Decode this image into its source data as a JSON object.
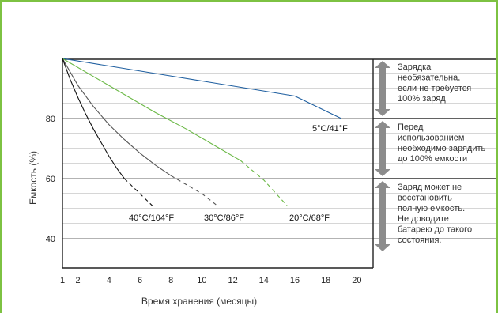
{
  "chart_data": {
    "type": "line",
    "xlabel": "Время хранения (месяцы)",
    "ylabel": "Емкость (%)",
    "xlim": [
      1,
      21
    ],
    "ylim": [
      35,
      100
    ],
    "x_ticks": [
      1,
      2,
      4,
      6,
      8,
      10,
      12,
      14,
      16,
      18,
      20
    ],
    "y_ticks": [
      40,
      60,
      80
    ],
    "grid": true,
    "series": [
      {
        "name": "5°C/41°F",
        "color": "#1f5fa0",
        "x": [
          1,
          4,
          7,
          10,
          13,
          16,
          19
        ],
        "y": [
          100,
          97.5,
          95,
          92.5,
          90,
          87.5,
          80
        ],
        "dashed_from_index": null
      },
      {
        "name": "20°C/68°F",
        "color": "#6ab845",
        "x": [
          1,
          3,
          5,
          7,
          9,
          11,
          12.5,
          14,
          15.5
        ],
        "y": [
          100,
          94,
          88,
          82,
          76.5,
          70.5,
          66,
          59.5,
          51
        ],
        "dashed_from_index": 6
      },
      {
        "name": "30°C/86°F",
        "color": "#555555",
        "x": [
          1,
          2,
          3,
          4,
          5,
          6,
          7,
          8,
          9,
          10,
          11
        ],
        "y": [
          100,
          91,
          84,
          78,
          73,
          68.5,
          64.5,
          61,
          58,
          55,
          51
        ],
        "dashed_from_index": 7
      },
      {
        "name": "40°C/104°F",
        "color": "#111111",
        "x": [
          1,
          1.5,
          2,
          2.5,
          3,
          3.5,
          4,
          4.5,
          5,
          6,
          6.8
        ],
        "y": [
          100,
          93,
          87,
          81.5,
          76.5,
          72,
          67.5,
          63.5,
          60,
          55,
          51
        ],
        "dashed_from_index": 8
      }
    ],
    "zones": [
      {
        "from": 80,
        "to": 100,
        "lines": [
          "Зарядка",
          "необязательна,",
          "если не требуется",
          "100% заряд"
        ]
      },
      {
        "from": 60,
        "to": 80,
        "lines": [
          "Перед",
          "использованием",
          "необходимо зарядить",
          "до 100% емкости"
        ]
      },
      {
        "from": 35,
        "to": 60,
        "lines": [
          "Заряд может не",
          "восстановить",
          "полную емкость.",
          "Не доводите",
          "батарею до такого",
          "состояния."
        ]
      }
    ],
    "zone_color": "#8c8c8c"
  }
}
